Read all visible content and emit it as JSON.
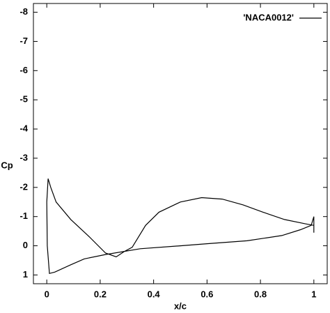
{
  "chart_data": {
    "type": "line",
    "xlabel": "x/c",
    "ylabel": "Cp",
    "xlim": [
      -0.05,
      1.05
    ],
    "xticks": [
      0,
      0.2,
      0.4,
      0.6,
      0.8,
      1
    ],
    "ylim": [
      1.3,
      -8.3
    ],
    "yticks": [
      1,
      0,
      -1,
      -2,
      -3,
      -4,
      -5,
      -6,
      -7,
      -8
    ],
    "legend": "top-right",
    "x": [
      1.0,
      0.97,
      0.89,
      0.81,
      0.735,
      0.657,
      0.58,
      0.5,
      0.42,
      0.37,
      0.32,
      0.29,
      0.26,
      0.22,
      0.16,
      0.09,
      0.035,
      0.015,
      0.005,
      0.0,
      0.002,
      0.01,
      0.03,
      0.09,
      0.14,
      0.22,
      0.35,
      0.5,
      0.6,
      0.75,
      0.88,
      0.95,
      0.99,
      1.0,
      1.0
    ],
    "series": [
      {
        "name": "'NACA0012'",
        "color": "#000000",
        "values": [
          -0.7,
          -0.75,
          -0.9,
          -1.15,
          -1.4,
          -1.6,
          -1.65,
          -1.5,
          -1.15,
          -0.7,
          0.05,
          0.2,
          0.38,
          0.25,
          -0.3,
          -0.9,
          -1.5,
          -2.0,
          -2.3,
          -1.5,
          0.0,
          0.95,
          0.9,
          0.65,
          0.45,
          0.3,
          0.1,
          0.0,
          -0.07,
          -0.17,
          -0.35,
          -0.55,
          -0.7,
          -1.0,
          -0.45
        ]
      }
    ]
  }
}
